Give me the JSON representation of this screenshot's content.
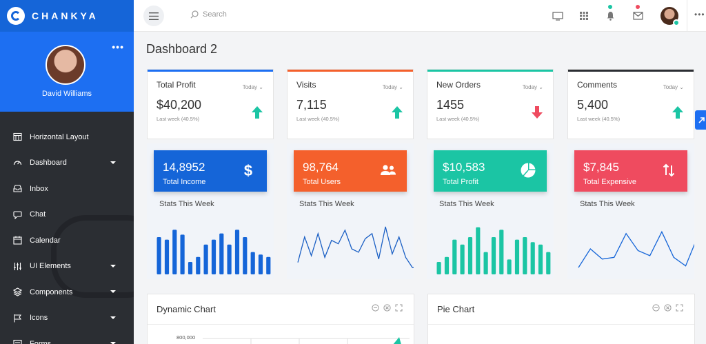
{
  "brand": {
    "name": "CHANKYA"
  },
  "profile": {
    "name": "David Williams",
    "more": "•••"
  },
  "sidebar": {
    "items": [
      {
        "label": "Horizontal Layout",
        "icon": "grid-icon",
        "caret": false
      },
      {
        "label": "Dashboard",
        "icon": "gauge-icon",
        "caret": true
      },
      {
        "label": "Inbox",
        "icon": "inbox-icon",
        "caret": false
      },
      {
        "label": "Chat",
        "icon": "chat-icon",
        "caret": false
      },
      {
        "label": "Calendar",
        "icon": "calendar-icon",
        "caret": false
      },
      {
        "label": "UI Elements",
        "icon": "sliders-icon",
        "caret": true
      },
      {
        "label": "Components",
        "icon": "layers-icon",
        "caret": true
      },
      {
        "label": "Icons",
        "icon": "flag-icon",
        "caret": true
      },
      {
        "label": "Forms",
        "icon": "form-icon",
        "caret": true
      }
    ]
  },
  "topbar": {
    "search_placeholder": "Search",
    "more": "•••"
  },
  "page": {
    "title": "Dashboard 2"
  },
  "stats": [
    {
      "title": "Total Profit",
      "period": "Today",
      "value": "$40,200",
      "sub": "Last week (40.5%)",
      "trend": "up",
      "color": "#1d6ff2"
    },
    {
      "title": "Visits",
      "period": "Today",
      "value": "7,115",
      "sub": "Last week (40.5%)",
      "trend": "up",
      "color": "#f4602c"
    },
    {
      "title": "New Orders",
      "period": "Today",
      "value": "1455",
      "sub": "Last week (40.5%)",
      "trend": "down",
      "color": "#1bc5a4"
    },
    {
      "title": "Comments",
      "period": "Today",
      "value": "5,400",
      "sub": "Last week (40.5%)",
      "trend": "up",
      "color": "#2b2e33"
    }
  ],
  "mini": [
    {
      "value": "14,8952",
      "label": "Total Income",
      "stats": "Stats This Week",
      "color": "#1565d8",
      "icon": "dollar-icon",
      "chart": {
        "type": "bar",
        "values": [
          30,
          28,
          36,
          32,
          10,
          14,
          24,
          28,
          33,
          24,
          36,
          30,
          18,
          16,
          14
        ]
      }
    },
    {
      "value": "98,764",
      "label": "Total Users",
      "stats": "Stats This Week",
      "color": "#f4602c",
      "icon": "users-icon",
      "chart": {
        "type": "line",
        "values": [
          14,
          44,
          22,
          48,
          20,
          40,
          36,
          52,
          30,
          26,
          42,
          48,
          18,
          56,
          24,
          44,
          20,
          8,
          10
        ]
      }
    },
    {
      "value": "$10,583",
      "label": "Total Profit",
      "stats": "Stats This Week",
      "color": "#1bc5a4",
      "icon": "pie-icon",
      "chart": {
        "type": "bar",
        "values": [
          10,
          14,
          28,
          24,
          30,
          38,
          18,
          30,
          36,
          12,
          28,
          30,
          26,
          24,
          18
        ]
      }
    },
    {
      "value": "$7,845",
      "label": "Total Expensive",
      "stats": "Stats This Week",
      "color": "#ef4b5f",
      "icon": "swap-icon",
      "chart": {
        "type": "line",
        "values": [
          8,
          30,
          18,
          20,
          48,
          28,
          22,
          50,
          20,
          10,
          44,
          60
        ]
      }
    }
  ],
  "dynamic_chart": {
    "title": "Dynamic Chart",
    "axis_top": "800,000"
  },
  "pie_chart": {
    "title": "Pie Chart"
  }
}
